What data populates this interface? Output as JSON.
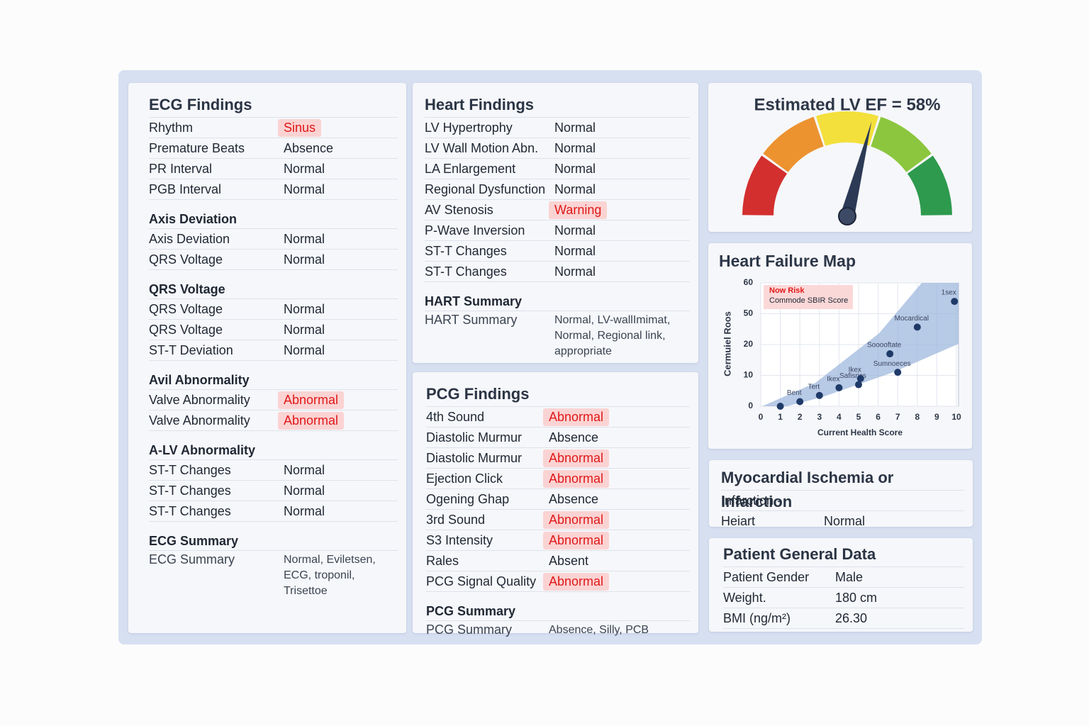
{
  "ecg": {
    "title": "ECG Findings",
    "sections": [
      {
        "rows": [
          {
            "label": "Rhythm",
            "value": "Sinus",
            "alert": true
          },
          {
            "label": "Premature Beats",
            "value": "Absence"
          },
          {
            "label": "PR Interval",
            "value": "Normal"
          },
          {
            "label": "PGB Interval",
            "value": "Normal"
          }
        ]
      },
      {
        "heading": "Axis Deviation",
        "rows": [
          {
            "label": "Axis Deviation",
            "value": "Normal"
          },
          {
            "label": "QRS Voltage",
            "value": "Normal"
          }
        ]
      },
      {
        "heading": "QRS Voltage",
        "rows": [
          {
            "label": "QRS Voltage",
            "value": "Normal"
          },
          {
            "label": "QRS Voltage",
            "value": "Normal"
          },
          {
            "label": "ST-T Deviation",
            "value": "Normal"
          }
        ]
      },
      {
        "heading": "Avil Abnormality",
        "rows": [
          {
            "label": "Valve Abnormality",
            "value": "Abnormal",
            "alert": true
          },
          {
            "label": "Valve Abnormality",
            "value": "Abnormal",
            "alert": true
          }
        ]
      },
      {
        "heading": "A-LV Abnormality",
        "rows": [
          {
            "label": "ST-T Changes",
            "value": "Normal"
          },
          {
            "label": "ST-T Changes",
            "value": "Normal"
          },
          {
            "label": "ST-T Changes",
            "value": "Normal"
          }
        ]
      },
      {
        "heading": "ECG Summary",
        "summary": true,
        "rows": [
          {
            "label": "ECG Summary",
            "value": "Normal, Eviletsen, ECG, troponil, Trisettoe"
          }
        ]
      }
    ]
  },
  "heart": {
    "title": "Heart Findings",
    "sections": [
      {
        "rows": [
          {
            "label": "LV Hypertrophy",
            "value": "Normal"
          },
          {
            "label": "LV Wall Motion Abn.",
            "value": "Normal"
          },
          {
            "label": "LA Enlargement",
            "value": "Normal"
          },
          {
            "label": "Regional Dysfunction",
            "value": "Normal"
          },
          {
            "label": "AV Stenosis",
            "value": "Warning",
            "alert": true
          },
          {
            "label": "P-Wave Inversion",
            "value": "Normal"
          },
          {
            "label": "ST-T Changes",
            "value": "Normal"
          },
          {
            "label": "ST-T Changes",
            "value": "Normal"
          }
        ]
      },
      {
        "heading": "HART Summary",
        "summary": true,
        "rows": [
          {
            "label": "HART Summary",
            "value": "Normal, LV-wallImimat, Normal, Regional link, appropriate"
          }
        ]
      }
    ]
  },
  "pcg": {
    "title": "PCG Findings",
    "sections": [
      {
        "rows": [
          {
            "label": "4th Sound",
            "value": "Abnormal",
            "alert": true
          },
          {
            "label": "Diastolic Murmur",
            "value": "Absence"
          },
          {
            "label": "Diastolic Murmur",
            "value": "Abnormal",
            "alert": true
          },
          {
            "label": "Ejection Click",
            "value": "Abnormal",
            "alert": true
          },
          {
            "label": "Ogening Ghap",
            "value": "Absence"
          },
          {
            "label": "3rd Sound",
            "value": "Abnormal",
            "alert": true
          },
          {
            "label": "S3 Intensity",
            "value": "Abnormal",
            "alert": true
          },
          {
            "label": "Rales",
            "value": "Absent"
          },
          {
            "label": "PCG Signal Quality",
            "value": "Abnormal",
            "alert": true
          }
        ]
      },
      {
        "heading": "PCG Summary",
        "summary": true,
        "rows": [
          {
            "label": "PCG Summary",
            "value": "Absence, Silly, PCB"
          }
        ]
      }
    ]
  },
  "myo": {
    "title": "Myocardial Ischemia or Infarction",
    "sections": [
      {
        "rows": [
          {
            "label": "Infarction -"
          },
          {
            "label": "Heiart",
            "value": "Normal"
          }
        ]
      }
    ]
  },
  "patient": {
    "title": "Patient General Data",
    "sections": [
      {
        "rows": [
          {
            "label": "Patient Gender",
            "value": "Male"
          },
          {
            "label": "Weight.",
            "value": "180 cm"
          },
          {
            "label": "BMI (ng/m²)",
            "value": "26.30"
          }
        ]
      }
    ]
  },
  "gauge": {
    "title": "Estimated LV EF = 58%",
    "value": 58,
    "range": [
      0,
      100
    ],
    "band_colors": [
      "#d32f2f",
      "#ec9330",
      "#f3e03c",
      "#8cc63f",
      "#2e9a4e"
    ],
    "needle_color": "#2c3a55"
  },
  "chart_data": {
    "type": "scatter",
    "title": "Heart Failure Map",
    "xlabel": "Current Health Score",
    "ylabel": "Cermuiel Roos",
    "legend": [
      "Now Risk",
      "Commode SBIR Score"
    ],
    "x": [
      1,
      2,
      3,
      4,
      5,
      5.1,
      7,
      6.6,
      8,
      9.9
    ],
    "values": [
      0,
      1.5,
      3.5,
      6,
      7,
      9,
      11,
      17,
      37,
      54
    ],
    "point_labels": [
      null,
      "Bent",
      "Tert",
      "Ikex",
      "Safisrics",
      "Ikex",
      "Sumnoeces",
      "Sooooftate",
      "Mocardical",
      "1sex"
    ],
    "color": "#1f3a68",
    "band_color": "#9fb8dd",
    "xlim": [
      0,
      10
    ],
    "xticks": [
      0,
      1,
      2,
      3,
      4,
      5,
      6,
      7,
      8,
      9,
      10
    ],
    "ylim": [
      0,
      60
    ],
    "yticks": [
      0,
      10,
      20,
      50,
      60
    ],
    "grid": true
  }
}
